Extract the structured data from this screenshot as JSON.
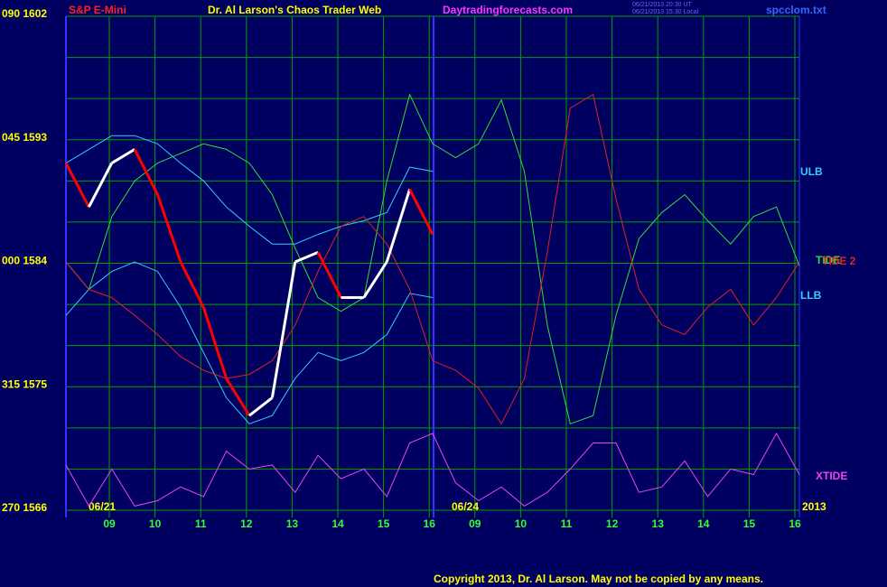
{
  "chart_data": {
    "type": "line",
    "title": "S&P E-Mini",
    "subtitle": "Dr. Al Larson's Chaos Trader Web",
    "site": "Daytradingforecasts.com",
    "timestamps": [
      "06/21/2013 20:30 UT",
      "06/21/2013 15:30 Local"
    ],
    "file_name": "spcclom.txt",
    "copyright": "Copyright 2013, Dr. Al Larson. May not be copied by any means.",
    "date_labels": [
      "06/21",
      "06/24",
      "2013"
    ],
    "xticks": [
      "09",
      "10",
      "11",
      "12",
      "13",
      "14",
      "15",
      "16",
      "09",
      "10",
      "11",
      "12",
      "13",
      "14",
      "15",
      "16"
    ],
    "ylim": [
      1566,
      1602
    ],
    "yticks": [
      {
        "value": 1602,
        "label": "090 1602"
      },
      {
        "value": 1593,
        "label": "045 1593"
      },
      {
        "value": 1584,
        "label": "000 1584"
      },
      {
        "value": 1575,
        "label": "315 1575"
      },
      {
        "value": 1566,
        "label": "270 1566"
      }
    ],
    "ygrid": [
      1569,
      1572,
      1578,
      1581,
      1587,
      1590,
      1596,
      1599
    ],
    "grid": true,
    "grid_color": "#00a000",
    "price": {
      "color": "#ffffff",
      "down_color": "#ff0000",
      "values": [
        1591.3,
        1588.1,
        1591.3,
        1592.3,
        1589.0,
        1584.1,
        1580.8,
        1575.6,
        1572.9,
        1574.2,
        1584.1,
        1584.8,
        1581.5,
        1581.5,
        1584.1,
        1589.4,
        1586.1,
        null,
        null,
        null,
        null,
        null,
        null,
        null,
        null,
        null,
        null,
        null,
        null,
        null,
        null,
        null,
        null
      ]
    },
    "series": [
      {
        "name": "ULB",
        "color": "#33ccff",
        "values": [
          1591.3,
          1592.3,
          1593.3,
          1593.3,
          1592.7,
          1591.3,
          1590.0,
          1588.1,
          1586.7,
          1585.4,
          1585.4,
          1586.1,
          1586.7,
          1587.1,
          1587.7,
          1591.0,
          1590.7,
          null,
          null,
          null,
          null,
          null,
          null,
          null,
          null,
          null,
          null,
          null,
          null,
          null,
          null,
          null,
          null
        ]
      },
      {
        "name": "LLB",
        "color": "#33ccff",
        "values": [
          1580.2,
          1582.1,
          1583.4,
          1584.1,
          1583.4,
          1580.8,
          1577.5,
          1574.2,
          1572.3,
          1572.9,
          1575.6,
          1577.5,
          1576.9,
          1577.5,
          1578.8,
          1581.8,
          1581.5,
          null,
          null,
          null,
          null,
          null,
          null,
          null,
          null,
          null,
          null,
          null,
          null,
          null,
          null,
          null,
          null
        ]
      },
      {
        "name": "TIDE",
        "color": "#33dd33",
        "values": [
          1584.1,
          1582.1,
          1587.4,
          1590.0,
          1591.3,
          1592.0,
          1592.7,
          1592.3,
          1591.3,
          1589.0,
          1585.1,
          1581.5,
          1580.5,
          1581.5,
          1590.0,
          1596.3,
          1592.7,
          1591.7,
          1592.7,
          1595.9,
          1590.7,
          1579.5,
          1572.3,
          1572.9,
          1580.2,
          1585.8,
          1587.7,
          1589.0,
          1587.1,
          1585.4,
          1587.4,
          1588.1,
          1583.8
        ]
      },
      {
        "name": "TIDE 2",
        "color": "#dd2222",
        "values": [
          1584.1,
          1582.1,
          1581.5,
          1580.2,
          1578.8,
          1577.2,
          1576.2,
          1575.6,
          1575.9,
          1576.9,
          1579.5,
          1583.4,
          1586.7,
          1587.4,
          1585.4,
          1582.1,
          1576.9,
          1576.2,
          1574.9,
          1572.3,
          1575.6,
          1584.8,
          1595.3,
          1596.3,
          1588.7,
          1582.1,
          1579.5,
          1578.8,
          1580.8,
          1582.1,
          1579.5,
          1581.5,
          1584.1
        ]
      },
      {
        "name": "XTIDE",
        "color": "#ee44ee",
        "values": [
          1569.3,
          1566.3,
          1569.0,
          1566.3,
          1566.7,
          1567.7,
          1567.0,
          1570.3,
          1569.0,
          1569.3,
          1567.3,
          1570.0,
          1568.3,
          1569.0,
          1567.0,
          1570.9,
          1571.6,
          1568.0,
          1566.7,
          1567.7,
          1566.3,
          1567.3,
          1569.0,
          1570.9,
          1570.9,
          1567.3,
          1567.7,
          1569.6,
          1567.0,
          1569.0,
          1568.6,
          1571.6,
          1568.6
        ]
      }
    ]
  }
}
